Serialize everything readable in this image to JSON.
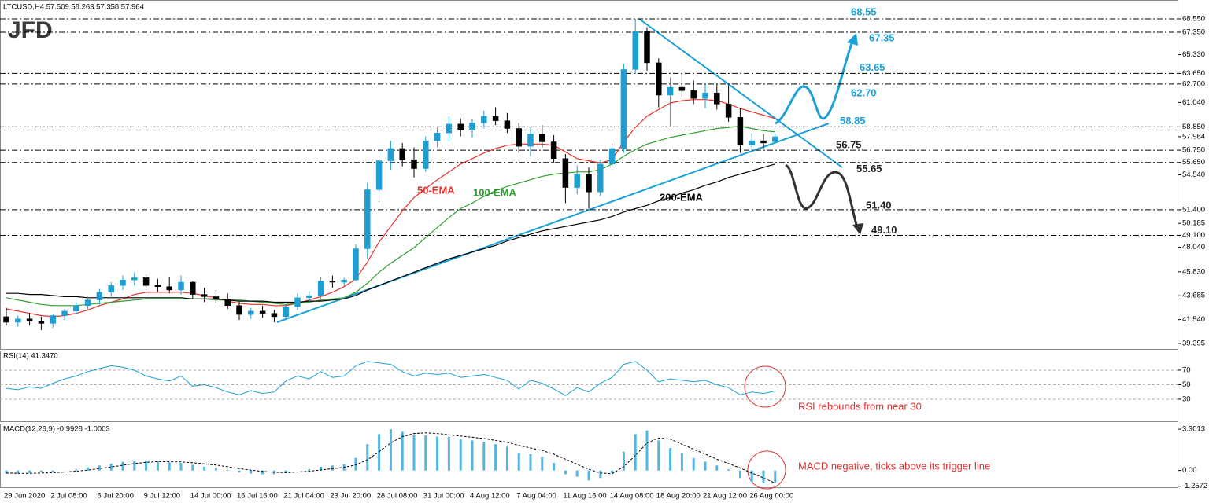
{
  "logo": "JFD",
  "chart_data": [
    {
      "type": "candlestick",
      "title": "LTCUSD,H4  57.509 58.263 57.358 57.964",
      "categories": [
        "29 Jun 2020",
        null,
        null,
        null,
        "2 Jul 08:00",
        null,
        null,
        null,
        "6 Jul 20:00",
        null,
        null,
        null,
        "9 Jul 12:00",
        null,
        null,
        null,
        "14 Jul 00:00",
        null,
        null,
        null,
        "16 Jul 16:00",
        null,
        null,
        null,
        "21 Jul 04:00",
        null,
        null,
        null,
        "23 Jul 20:00",
        null,
        null,
        null,
        "28 Jul 08:00",
        null,
        null,
        null,
        "31 Jul 00:00",
        null,
        null,
        null,
        "4 Aug 12:00",
        null,
        null,
        null,
        "7 Aug 04:00",
        null,
        null,
        null,
        "11 Aug 16:00",
        null,
        null,
        null,
        "14 Aug 08:00",
        null,
        null,
        null,
        "18 Aug 20:00",
        null,
        null,
        null,
        "21 Aug 12:00",
        null,
        null,
        null,
        "26 Aug 00:00",
        null,
        null
      ],
      "open": [
        41.8,
        41.3,
        41.6,
        41.4,
        41.2,
        41.9,
        42.3,
        42.8,
        43.3,
        44.0,
        44.6,
        45.1,
        45.3,
        44.6,
        44.5,
        44.2,
        44.9,
        43.8,
        43.6,
        43.4,
        42.8,
        42.0,
        42.3,
        42.1,
        41.8,
        42.7,
        43.5,
        43.7,
        45.0,
        44.9,
        45.1,
        47.9,
        53.2,
        55.8,
        56.9,
        55.9,
        55.1,
        57.6,
        58.3,
        59.1,
        58.6,
        59.2,
        59.8,
        59.4,
        58.7,
        57.1,
        58.2,
        57.5,
        56.0,
        53.4,
        54.6,
        53.0,
        55.5,
        56.9,
        64.0,
        67.4,
        64.6,
        61.7,
        62.4,
        62.1,
        61.4,
        61.9,
        60.9,
        59.7,
        57.2,
        57.6,
        57.509
      ],
      "high": [
        42.6,
        41.9,
        42.1,
        41.8,
        42.0,
        42.5,
        43.1,
        43.6,
        44.3,
        44.9,
        45.5,
        45.8,
        45.6,
        45.2,
        45.4,
        45.5,
        45.0,
        44.4,
        44.2,
        43.9,
        43.2,
        42.6,
        42.8,
        42.4,
        42.9,
        43.9,
        44.1,
        45.4,
        45.5,
        45.3,
        48.3,
        53.8,
        56.3,
        57.6,
        57.4,
        57.0,
        58.0,
        58.9,
        59.8,
        59.6,
        59.5,
        60.3,
        60.6,
        60.1,
        59.2,
        58.8,
        59.0,
        58.1,
        56.4,
        55.4,
        55.2,
        55.9,
        57.4,
        64.5,
        68.55,
        67.8,
        65.0,
        63.3,
        63.6,
        63.0,
        62.8,
        62.7,
        62.6,
        60.5,
        58.3,
        58.2,
        58.263
      ],
      "low": [
        41.0,
        40.9,
        41.0,
        40.6,
        40.8,
        41.5,
        42.0,
        42.4,
        42.9,
        43.6,
        44.2,
        44.6,
        44.2,
        44.0,
        43.9,
        43.8,
        43.4,
        43.1,
        43.0,
        42.5,
        41.5,
        41.6,
        41.7,
        41.3,
        41.6,
        42.4,
        43.0,
        43.4,
        44.4,
        44.5,
        45.0,
        47.0,
        52.1,
        55.0,
        55.3,
        54.3,
        54.8,
        57.0,
        57.5,
        58.0,
        57.9,
        58.7,
        59.0,
        58.3,
        56.5,
        56.2,
        57.0,
        55.6,
        52.0,
        52.8,
        51.5,
        52.6,
        55.2,
        56.5,
        63.6,
        63.9,
        60.6,
        58.8,
        61.5,
        60.9,
        60.5,
        60.4,
        59.3,
        56.5,
        56.7,
        56.9,
        57.358
      ],
      "close": [
        41.3,
        41.6,
        41.4,
        41.2,
        41.9,
        42.3,
        42.8,
        43.3,
        44.0,
        44.6,
        45.1,
        45.3,
        44.6,
        44.5,
        44.2,
        44.9,
        43.8,
        43.6,
        43.4,
        42.8,
        42.0,
        42.3,
        42.1,
        41.8,
        42.7,
        43.5,
        43.7,
        45.0,
        44.9,
        45.1,
        47.9,
        53.2,
        55.8,
        56.9,
        55.9,
        55.1,
        57.6,
        58.3,
        59.1,
        58.6,
        59.2,
        59.8,
        59.4,
        58.7,
        57.1,
        58.2,
        57.5,
        56.0,
        53.4,
        54.6,
        53.0,
        55.5,
        56.9,
        64.0,
        67.4,
        64.6,
        61.7,
        62.4,
        62.1,
        61.4,
        61.9,
        60.9,
        59.7,
        57.2,
        57.6,
        57.4,
        57.964
      ],
      "up_color": "#1e9fd4",
      "down_color": "#000000",
      "series": [
        {
          "name": "50-EMA",
          "color": "#e8322c",
          "values": [
            42.5,
            42.3,
            42.1,
            41.9,
            41.8,
            41.9,
            42.1,
            42.4,
            42.8,
            43.1,
            43.4,
            43.8,
            44.0,
            44.0,
            44.0,
            44.0,
            43.9,
            43.7,
            43.5,
            43.2,
            43.0,
            42.9,
            42.9,
            42.8,
            42.8,
            43.0,
            43.3,
            43.6,
            44.0,
            44.5,
            45.2,
            46.7,
            48.5,
            49.9,
            51.3,
            52.5,
            53.3,
            54.1,
            54.8,
            55.5,
            56.0,
            56.5,
            56.9,
            57.2,
            57.3,
            57.3,
            57.3,
            57.2,
            56.6,
            56.0,
            55.8,
            55.6,
            55.9,
            57.5,
            58.8,
            59.8,
            60.4,
            61.0,
            61.2,
            61.3,
            61.3,
            61.2,
            60.9,
            60.5,
            60.2,
            59.9,
            59.6
          ]
        },
        {
          "name": "100-EMA",
          "color": "#2e9e2e",
          "values": [
            43.5,
            43.3,
            43.1,
            42.9,
            42.8,
            42.8,
            42.8,
            42.9,
            43.0,
            43.1,
            43.2,
            43.3,
            43.4,
            43.4,
            43.4,
            43.4,
            43.4,
            43.4,
            43.3,
            43.3,
            43.3,
            43.2,
            43.1,
            43.0,
            42.9,
            43.0,
            43.1,
            43.3,
            43.4,
            43.5,
            44.0,
            44.8,
            45.8,
            46.6,
            47.3,
            48.0,
            48.9,
            49.8,
            50.7,
            51.5,
            52.0,
            52.6,
            53.1,
            53.5,
            53.8,
            54.1,
            54.4,
            54.6,
            54.7,
            54.8,
            54.8,
            55.0,
            55.5,
            56.2,
            56.8,
            57.3,
            57.6,
            57.9,
            58.1,
            58.3,
            58.5,
            58.7,
            58.8,
            58.9,
            58.7,
            58.5,
            58.4
          ]
        },
        {
          "name": "200-EMA",
          "color": "#000000",
          "values": [
            43.9,
            43.9,
            43.8,
            43.8,
            43.7,
            43.6,
            43.6,
            43.5,
            43.5,
            43.5,
            43.5,
            43.5,
            43.5,
            43.5,
            43.5,
            43.5,
            43.4,
            43.4,
            43.4,
            43.3,
            43.2,
            43.2,
            43.2,
            43.1,
            43.1,
            43.1,
            43.2,
            43.2,
            43.3,
            43.4,
            43.7,
            44.2,
            44.6,
            45.0,
            45.4,
            45.8,
            46.2,
            46.6,
            47.0,
            47.3,
            47.6,
            47.9,
            48.2,
            48.6,
            48.9,
            49.2,
            49.5,
            49.7,
            49.9,
            50.1,
            50.3,
            50.5,
            50.8,
            51.2,
            51.5,
            51.8,
            52.2,
            52.5,
            52.9,
            53.2,
            53.6,
            53.9,
            54.3,
            54.6,
            54.9,
            55.2,
            55.5
          ]
        }
      ],
      "ylim": [
        38.83,
        70.03
      ],
      "yticks": [
        {
          "value": 68.55,
          "label": "68.550"
        },
        {
          "value": 67.35,
          "label": "67.350"
        },
        {
          "value": 65.33,
          "label": "65.330"
        },
        {
          "value": 63.65,
          "label": "63.650"
        },
        {
          "value": 62.7,
          "label": "62.700"
        },
        {
          "value": 61.04,
          "label": "61.040"
        },
        {
          "value": 58.85,
          "label": "58.850"
        },
        57.964,
        {
          "value": 56.75,
          "label": "56.750"
        },
        {
          "value": 55.65,
          "label": "55.650"
        },
        {
          "value": 54.54,
          "label": "54.540"
        },
        {
          "value": 51.4,
          "label": "51.400"
        },
        50.185,
        {
          "value": 49.1,
          "label": "49.100"
        },
        {
          "value": 48.04,
          "label": "48.040"
        },
        {
          "value": 45.83,
          "label": "45.830"
        },
        43.685,
        {
          "value": 41.54,
          "label": "41.540"
        },
        39.395
      ],
      "levels": [
        {
          "value": 68.55,
          "color": "#1ba1d8"
        },
        {
          "value": 67.35,
          "color": "#1ba1d8"
        },
        {
          "value": 63.65,
          "color": "#1ba1d8"
        },
        {
          "value": 62.7,
          "label": "62.70",
          "color": "#1ba1d8"
        },
        {
          "value": 58.85,
          "color": "#1ba1d8"
        },
        {
          "value": 56.75,
          "color": "#222222"
        },
        {
          "value": 55.65,
          "color": "#222222"
        },
        {
          "value": 51.4,
          "label": "51.40",
          "color": "#222222"
        },
        {
          "value": 49.1,
          "label": "49.10",
          "color": "#222222"
        }
      ]
    },
    {
      "type": "line",
      "title": "RSI(14) 41.3470",
      "color": "#1e9fd4",
      "values": [
        45,
        43,
        47,
        45,
        52,
        58,
        62,
        68,
        72,
        76,
        74,
        70,
        62,
        58,
        55,
        62,
        48,
        50,
        46,
        40,
        36,
        42,
        38,
        40,
        55,
        62,
        58,
        68,
        60,
        62,
        76,
        82,
        80,
        78,
        68,
        62,
        66,
        64,
        66,
        60,
        62,
        64,
        60,
        56,
        44,
        56,
        52,
        44,
        35,
        46,
        40,
        52,
        60,
        78,
        82,
        70,
        54,
        58,
        56,
        54,
        56,
        50,
        46,
        36,
        40,
        38,
        41.347
      ],
      "ylim": [
        -1.4,
        95.9
      ],
      "yticks": [
        70,
        50,
        30
      ],
      "grid": true,
      "annotation": "RSI rebounds from near 30",
      "annotation_color": "#e03030"
    },
    {
      "type": "macd",
      "title": "MACD(12,26,9) -0.9928 -1.0003",
      "color": "#52b6e2",
      "values": [
        -0.25,
        -0.25,
        -0.2,
        -0.15,
        -0.1,
        0.0,
        0.1,
        0.25,
        0.4,
        0.55,
        0.7,
        0.8,
        0.8,
        0.75,
        0.65,
        0.6,
        0.45,
        0.3,
        0.2,
        0.05,
        -0.15,
        -0.25,
        -0.3,
        -0.3,
        -0.2,
        0.0,
        0.1,
        0.3,
        0.4,
        0.5,
        1.0,
        2.1,
        2.9,
        3.3,
        3.1,
        2.8,
        2.8,
        2.7,
        2.7,
        2.5,
        2.4,
        2.3,
        2.1,
        1.9,
        1.4,
        1.3,
        1.1,
        0.6,
        -0.3,
        -0.5,
        -0.8,
        -0.6,
        -0.2,
        1.5,
        2.9,
        3.2,
        2.4,
        1.8,
        1.4,
        1.0,
        0.7,
        0.4,
        0.1,
        -0.6,
        -0.9,
        -1.0,
        -0.9928
      ],
      "signal_color": "#000000",
      "signal": [
        -0.2,
        -0.22,
        -0.22,
        -0.2,
        -0.17,
        -0.12,
        -0.06,
        0.03,
        0.15,
        0.28,
        0.42,
        0.55,
        0.65,
        0.7,
        0.7,
        0.68,
        0.62,
        0.53,
        0.43,
        0.3,
        0.15,
        0.03,
        -0.07,
        -0.14,
        -0.17,
        -0.12,
        -0.06,
        0.04,
        0.15,
        0.25,
        0.45,
        0.85,
        1.5,
        2.2,
        2.7,
        2.95,
        3.0,
        2.95,
        2.85,
        2.75,
        2.65,
        2.55,
        2.4,
        2.25,
        2.0,
        1.8,
        1.6,
        1.3,
        0.9,
        0.5,
        0.1,
        -0.2,
        -0.25,
        0.3,
        1.2,
        2.2,
        2.6,
        2.5,
        2.1,
        1.7,
        1.3,
        0.9,
        0.55,
        0.2,
        -0.2,
        -0.6,
        -1.0003
      ],
      "ylim": [
        -1.4,
        3.68
      ],
      "yticks": [
        3.3013,
        {
          "value": 0,
          "label": "0.00"
        },
        -1.2572
      ],
      "annotation": "MACD negative, ticks above its trigger line",
      "annotation_color": "#e03030"
    }
  ]
}
